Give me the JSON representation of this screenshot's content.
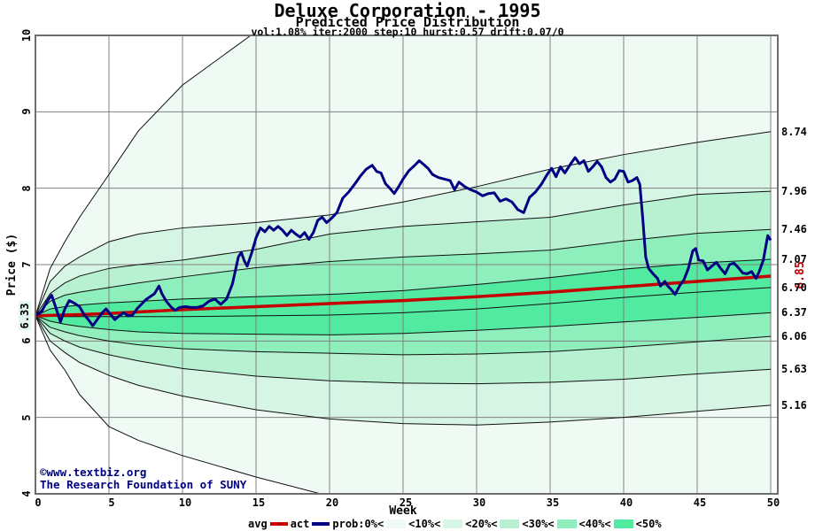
{
  "header": {
    "title": "Deluxe Corporation - 1995",
    "subtitle": "Predicted Price Distribution",
    "params": "vol:1.08% iter:2000 step:10 hurst:0.57 drift:0.07/0"
  },
  "watermark": {
    "line1": "©www.textbiz.org",
    "line2": "The Research Foundation of SUNY"
  },
  "colors": {
    "avg_line": "#c40000",
    "act_line": "#000082",
    "fan_line": "#101010",
    "grid": "#818181",
    "frame": "#6e6e6e",
    "band_shades": [
      "#eefaf3",
      "#d7f5e4",
      "#b7f1d1",
      "#8eeebc",
      "#52e9a0"
    ],
    "start_label_bg": "#e4f7ec",
    "watermark_text": "#000082"
  },
  "chart_data": {
    "type": "line",
    "title": "Deluxe Corporation - 1995",
    "subtitle": "Predicted Price Distribution",
    "annotation": "vol:1.08% iter:2000 step:10 hurst:0.57 drift:0.07/0",
    "xlabel": "Week",
    "ylabel": "Price ($)",
    "xlim": [
      0,
      50
    ],
    "ylim": [
      4,
      10
    ],
    "grid": true,
    "x_ticks": [
      0,
      5,
      10,
      15,
      20,
      25,
      30,
      35,
      40,
      45,
      50
    ],
    "y_ticks": [
      4,
      5,
      6,
      7,
      8,
      9,
      10
    ],
    "start_value": 6.33,
    "start_label": "6.33",
    "avg_end_value": 6.85,
    "avg_end_label": "6.85",
    "right_axis_labels": [
      {
        "value": 8.74,
        "text": "8.74"
      },
      {
        "value": 7.96,
        "text": "7.96"
      },
      {
        "value": 7.46,
        "text": "7.46"
      },
      {
        "value": 7.07,
        "text": "7.07"
      },
      {
        "value": 6.7,
        "text": "6.70"
      },
      {
        "value": 6.37,
        "text": "6.37"
      },
      {
        "value": 6.06,
        "text": "6.06"
      },
      {
        "value": 5.63,
        "text": "5.63"
      },
      {
        "value": 5.16,
        "text": "5.16"
      }
    ],
    "percentile_weeks": [
      0,
      1,
      2,
      3,
      5,
      7,
      10,
      15,
      20,
      25,
      30,
      35,
      40,
      45,
      50
    ],
    "percentile_bands": [
      {
        "name": "max",
        "values": [
          6.33,
          6.95,
          7.3,
          7.62,
          8.18,
          8.75,
          9.35,
          10.05,
          10.55,
          10.85,
          11.05,
          11.2,
          11.3,
          11.4,
          11.5
        ]
      },
      {
        "name": "p90",
        "values": [
          6.33,
          6.78,
          6.98,
          7.1,
          7.3,
          7.4,
          7.48,
          7.55,
          7.65,
          7.82,
          8.02,
          8.25,
          8.44,
          8.6,
          8.74
        ]
      },
      {
        "name": "p80",
        "values": [
          6.33,
          6.62,
          6.76,
          6.85,
          6.95,
          7.0,
          7.06,
          7.2,
          7.4,
          7.5,
          7.56,
          7.62,
          7.78,
          7.92,
          7.96
        ]
      },
      {
        "name": "p70",
        "values": [
          6.33,
          6.52,
          6.6,
          6.64,
          6.7,
          6.76,
          6.84,
          6.96,
          7.04,
          7.1,
          7.14,
          7.19,
          7.31,
          7.41,
          7.46
        ]
      },
      {
        "name": "p60",
        "values": [
          6.33,
          6.42,
          6.45,
          6.47,
          6.5,
          6.52,
          6.55,
          6.58,
          6.61,
          6.66,
          6.74,
          6.83,
          6.94,
          7.02,
          7.07
        ]
      },
      {
        "name": "p50",
        "values": [
          6.33,
          6.33,
          6.32,
          6.32,
          6.32,
          6.32,
          6.32,
          6.33,
          6.34,
          6.37,
          6.42,
          6.49,
          6.57,
          6.64,
          6.7
        ]
      },
      {
        "name": "p40",
        "values": [
          6.33,
          6.26,
          6.22,
          6.19,
          6.15,
          6.12,
          6.1,
          6.09,
          6.08,
          6.1,
          6.14,
          6.19,
          6.25,
          6.31,
          6.37
        ]
      },
      {
        "name": "p30",
        "values": [
          6.33,
          6.18,
          6.12,
          6.07,
          6.0,
          5.95,
          5.9,
          5.86,
          5.84,
          5.82,
          5.83,
          5.86,
          5.92,
          5.99,
          6.06
        ]
      },
      {
        "name": "p20",
        "values": [
          6.33,
          6.1,
          6.0,
          5.92,
          5.82,
          5.74,
          5.64,
          5.54,
          5.48,
          5.45,
          5.44,
          5.46,
          5.5,
          5.57,
          5.63
        ]
      },
      {
        "name": "p10",
        "values": [
          6.33,
          6.0,
          5.85,
          5.72,
          5.55,
          5.42,
          5.28,
          5.1,
          4.98,
          4.92,
          4.9,
          4.94,
          5.0,
          5.08,
          5.16
        ]
      },
      {
        "name": "min",
        "values": [
          6.33,
          5.88,
          5.62,
          5.3,
          4.88,
          4.7,
          4.5,
          4.22,
          3.97,
          3.8,
          3.68,
          3.6,
          3.55,
          3.5,
          3.48
        ]
      }
    ],
    "band_fill_shade_index": [
      0,
      1,
      2,
      3,
      4,
      4,
      3,
      2,
      1,
      0
    ],
    "series": [
      {
        "name": "avg",
        "weeks": [
          0,
          1,
          2,
          3,
          5,
          7,
          10,
          15,
          20,
          25,
          30,
          35,
          40,
          45,
          50
        ],
        "values": [
          6.33,
          6.335,
          6.34,
          6.345,
          6.36,
          6.38,
          6.41,
          6.45,
          6.49,
          6.53,
          6.58,
          6.64,
          6.71,
          6.78,
          6.85
        ]
      },
      {
        "name": "act",
        "points": [
          [
            0,
            6.33
          ],
          [
            0.4,
            6.38
          ],
          [
            0.8,
            6.52
          ],
          [
            1.1,
            6.6
          ],
          [
            1.4,
            6.43
          ],
          [
            1.7,
            6.25
          ],
          [
            2.0,
            6.42
          ],
          [
            2.3,
            6.53
          ],
          [
            2.6,
            6.5
          ],
          [
            3.0,
            6.45
          ],
          [
            3.3,
            6.35
          ],
          [
            3.6,
            6.28
          ],
          [
            3.9,
            6.2
          ],
          [
            4.2,
            6.28
          ],
          [
            4.5,
            6.36
          ],
          [
            4.8,
            6.42
          ],
          [
            5.1,
            6.35
          ],
          [
            5.4,
            6.28
          ],
          [
            5.7,
            6.33
          ],
          [
            6.0,
            6.37
          ],
          [
            6.3,
            6.33
          ],
          [
            6.6,
            6.34
          ],
          [
            6.9,
            6.42
          ],
          [
            7.2,
            6.48
          ],
          [
            7.5,
            6.54
          ],
          [
            7.8,
            6.58
          ],
          [
            8.1,
            6.62
          ],
          [
            8.4,
            6.72
          ],
          [
            8.6,
            6.62
          ],
          [
            8.9,
            6.52
          ],
          [
            9.2,
            6.45
          ],
          [
            9.5,
            6.4
          ],
          [
            9.8,
            6.44
          ],
          [
            10.2,
            6.45
          ],
          [
            10.6,
            6.44
          ],
          [
            11.0,
            6.44
          ],
          [
            11.4,
            6.46
          ],
          [
            11.8,
            6.52
          ],
          [
            12.2,
            6.55
          ],
          [
            12.6,
            6.48
          ],
          [
            13.0,
            6.55
          ],
          [
            13.4,
            6.75
          ],
          [
            13.8,
            7.1
          ],
          [
            14.0,
            7.16
          ],
          [
            14.2,
            7.05
          ],
          [
            14.4,
            6.98
          ],
          [
            14.7,
            7.15
          ],
          [
            15.0,
            7.35
          ],
          [
            15.3,
            7.48
          ],
          [
            15.6,
            7.43
          ],
          [
            15.9,
            7.5
          ],
          [
            16.2,
            7.45
          ],
          [
            16.5,
            7.5
          ],
          [
            16.8,
            7.45
          ],
          [
            17.1,
            7.38
          ],
          [
            17.4,
            7.45
          ],
          [
            17.7,
            7.4
          ],
          [
            18.0,
            7.36
          ],
          [
            18.3,
            7.42
          ],
          [
            18.6,
            7.33
          ],
          [
            18.9,
            7.42
          ],
          [
            19.2,
            7.58
          ],
          [
            19.5,
            7.62
          ],
          [
            19.8,
            7.55
          ],
          [
            20.1,
            7.6
          ],
          [
            20.5,
            7.68
          ],
          [
            20.9,
            7.87
          ],
          [
            21.3,
            7.95
          ],
          [
            21.7,
            8.05
          ],
          [
            22.1,
            8.16
          ],
          [
            22.5,
            8.25
          ],
          [
            22.9,
            8.3
          ],
          [
            23.2,
            8.22
          ],
          [
            23.5,
            8.2
          ],
          [
            23.8,
            8.06
          ],
          [
            24.1,
            8.0
          ],
          [
            24.4,
            7.93
          ],
          [
            24.7,
            8.02
          ],
          [
            25.0,
            8.12
          ],
          [
            25.4,
            8.23
          ],
          [
            25.8,
            8.3
          ],
          [
            26.1,
            8.36
          ],
          [
            26.4,
            8.31
          ],
          [
            26.7,
            8.26
          ],
          [
            27.0,
            8.18
          ],
          [
            27.4,
            8.14
          ],
          [
            27.8,
            8.12
          ],
          [
            28.2,
            8.1
          ],
          [
            28.5,
            7.98
          ],
          [
            28.8,
            8.08
          ],
          [
            29.2,
            8.02
          ],
          [
            29.6,
            7.98
          ],
          [
            30.0,
            7.95
          ],
          [
            30.4,
            7.9
          ],
          [
            30.8,
            7.93
          ],
          [
            31.2,
            7.94
          ],
          [
            31.6,
            7.83
          ],
          [
            32.0,
            7.86
          ],
          [
            32.4,
            7.82
          ],
          [
            32.8,
            7.72
          ],
          [
            33.2,
            7.68
          ],
          [
            33.6,
            7.88
          ],
          [
            34.0,
            7.95
          ],
          [
            34.4,
            8.05
          ],
          [
            34.8,
            8.18
          ],
          [
            35.1,
            8.26
          ],
          [
            35.4,
            8.15
          ],
          [
            35.7,
            8.28
          ],
          [
            36.0,
            8.2
          ],
          [
            36.4,
            8.32
          ],
          [
            36.7,
            8.4
          ],
          [
            37.0,
            8.32
          ],
          [
            37.3,
            8.36
          ],
          [
            37.6,
            8.22
          ],
          [
            37.9,
            8.28
          ],
          [
            38.2,
            8.35
          ],
          [
            38.5,
            8.28
          ],
          [
            38.8,
            8.14
          ],
          [
            39.1,
            8.08
          ],
          [
            39.4,
            8.12
          ],
          [
            39.7,
            8.23
          ],
          [
            40.0,
            8.22
          ],
          [
            40.3,
            8.08
          ],
          [
            40.6,
            8.1
          ],
          [
            40.9,
            8.14
          ],
          [
            41.1,
            8.05
          ],
          [
            41.3,
            7.6
          ],
          [
            41.5,
            7.1
          ],
          [
            41.7,
            6.95
          ],
          [
            42.0,
            6.88
          ],
          [
            42.3,
            6.82
          ],
          [
            42.5,
            6.72
          ],
          [
            42.8,
            6.78
          ],
          [
            43.0,
            6.72
          ],
          [
            43.2,
            6.68
          ],
          [
            43.5,
            6.61
          ],
          [
            43.8,
            6.72
          ],
          [
            44.1,
            6.8
          ],
          [
            44.4,
            6.95
          ],
          [
            44.7,
            7.18
          ],
          [
            44.9,
            7.21
          ],
          [
            45.1,
            7.06
          ],
          [
            45.4,
            7.05
          ],
          [
            45.7,
            6.93
          ],
          [
            46.0,
            6.98
          ],
          [
            46.3,
            7.03
          ],
          [
            46.6,
            6.95
          ],
          [
            46.9,
            6.88
          ],
          [
            47.2,
            7.0
          ],
          [
            47.5,
            7.02
          ],
          [
            47.8,
            6.96
          ],
          [
            48.1,
            6.89
          ],
          [
            48.4,
            6.88
          ],
          [
            48.7,
            6.91
          ],
          [
            49.0,
            6.82
          ],
          [
            49.2,
            6.9
          ],
          [
            49.5,
            7.06
          ],
          [
            49.8,
            7.38
          ],
          [
            50,
            7.32
          ]
        ]
      }
    ]
  },
  "legend": {
    "items": [
      {
        "label": "avg",
        "swatch": "line",
        "color": "#c40000"
      },
      {
        "label": "act",
        "swatch": "line",
        "color": "#000082"
      },
      {
        "label": "prob:0%<",
        "swatch": "box",
        "color": "#eefaf3"
      },
      {
        "label": "<10%<",
        "swatch": "box",
        "color": "#d7f5e4"
      },
      {
        "label": "<20%<",
        "swatch": "box",
        "color": "#b7f1d1"
      },
      {
        "label": "<30%<",
        "swatch": "box",
        "color": "#8eeebc"
      },
      {
        "label": "<40%<",
        "swatch": "box",
        "color": "#52e9a0"
      },
      {
        "label": "<50%",
        "swatch": null,
        "color": null
      }
    ]
  }
}
